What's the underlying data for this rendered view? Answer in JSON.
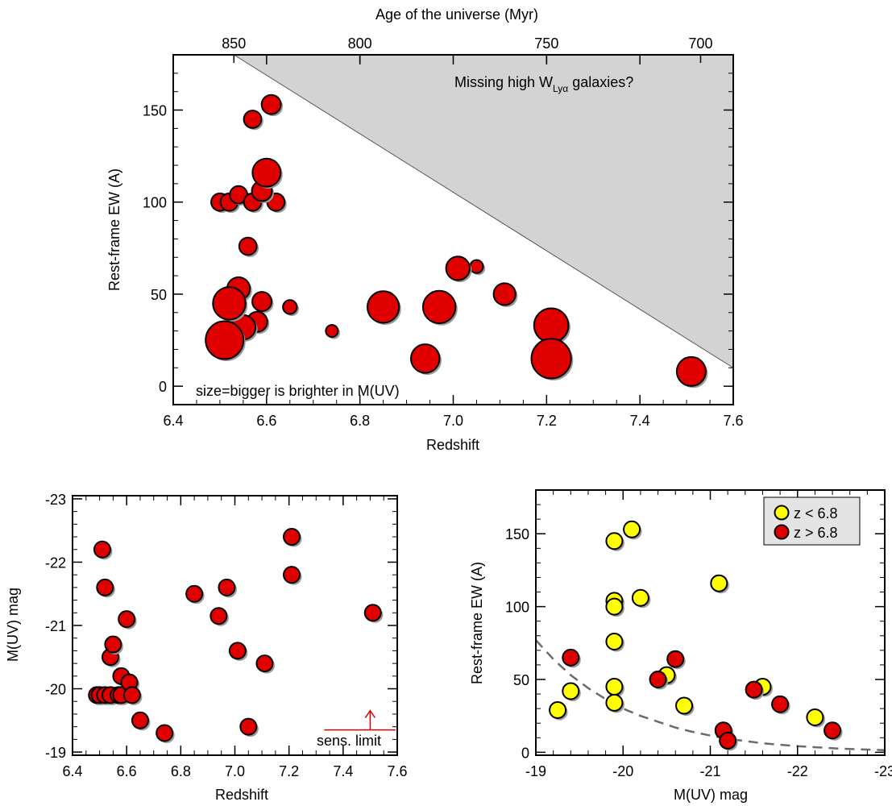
{
  "chart_data": [
    {
      "type": "scatter",
      "panel": "top",
      "xlabel": "Redshift",
      "ylabel": "Rest-frame EW (A)",
      "top_axis_label": "Age of the universe (Myr)",
      "xlim": [
        6.4,
        7.6
      ],
      "ylim": [
        -10,
        180
      ],
      "x_ticks": [
        "6.4",
        "6.6",
        "6.8",
        "7.0",
        "7.2",
        "7.4",
        "7.6"
      ],
      "y_ticks": [
        "0",
        "50",
        "100",
        "150"
      ],
      "top_ticks": [
        {
          "label": "850",
          "z": 6.53
        },
        {
          "label": "800",
          "z": 6.8
        },
        {
          "label": "750",
          "z": 7.2
        },
        {
          "label": "700",
          "z": 7.53
        }
      ],
      "annotations": {
        "missing_prefix": "Missing high W",
        "missing_sub": "Lyα",
        "missing_suffix": " galaxies?",
        "size_note": "size=bigger is brighter in M(UV)"
      },
      "shaded_region_line": [
        [
          6.53,
          180
        ],
        [
          7.6,
          10
        ]
      ],
      "colors": {
        "point": "#e00000",
        "shade": "#d3d3d3",
        "shadow": "#9a9a9a"
      },
      "points": [
        {
          "x": 6.5,
          "y": 100,
          "muv": -19.9
        },
        {
          "x": 6.51,
          "y": 25,
          "muv": -22.2
        },
        {
          "x": 6.52,
          "y": 45,
          "muv": -21.6
        },
        {
          "x": 6.52,
          "y": 100,
          "muv": -19.9
        },
        {
          "x": 6.54,
          "y": 104,
          "muv": -19.9
        },
        {
          "x": 6.54,
          "y": 53,
          "muv": -20.5
        },
        {
          "x": 6.55,
          "y": 32,
          "muv": -20.7
        },
        {
          "x": 6.56,
          "y": 76,
          "muv": -19.9
        },
        {
          "x": 6.57,
          "y": 145,
          "muv": -19.9
        },
        {
          "x": 6.57,
          "y": 100,
          "muv": -19.9
        },
        {
          "x": 6.58,
          "y": 35,
          "muv": -20.2
        },
        {
          "x": 6.59,
          "y": 106,
          "muv": -20.2
        },
        {
          "x": 6.59,
          "y": 46,
          "muv": -20.1
        },
        {
          "x": 6.6,
          "y": 116,
          "muv": -21.1
        },
        {
          "x": 6.61,
          "y": 153,
          "muv": -20.1
        },
        {
          "x": 6.62,
          "y": 100,
          "muv": -19.9
        },
        {
          "x": 6.65,
          "y": 43,
          "muv": -19.5
        },
        {
          "x": 6.74,
          "y": 30,
          "muv": -19.3
        },
        {
          "x": 6.85,
          "y": 43,
          "muv": -21.5
        },
        {
          "x": 6.94,
          "y": 15,
          "muv": -21.15
        },
        {
          "x": 6.97,
          "y": 43,
          "muv": -21.6
        },
        {
          "x": 7.01,
          "y": 64,
          "muv": -20.6
        },
        {
          "x": 7.05,
          "y": 65,
          "muv": -19.4
        },
        {
          "x": 7.11,
          "y": 50,
          "muv": -20.4
        },
        {
          "x": 7.21,
          "y": 33,
          "muv": -21.8
        },
        {
          "x": 7.21,
          "y": 15,
          "muv": -22.4
        },
        {
          "x": 7.51,
          "y": 8,
          "muv": -21.2
        }
      ]
    },
    {
      "type": "scatter",
      "panel": "bottom-left",
      "xlabel": "Redshift",
      "ylabel": "M(UV) mag",
      "xlim": [
        6.4,
        7.6
      ],
      "ylim": [
        -18.95,
        -23.05
      ],
      "x_ticks": [
        "6.4",
        "6.6",
        "6.8",
        "7.0",
        "7.2",
        "7.4",
        "7.6"
      ],
      "y_ticks": [
        "-19",
        "-20",
        "-21",
        "-22",
        "-23"
      ],
      "sens_limit": {
        "label": "sens. limit",
        "x_from": 7.33,
        "x_to": 7.6,
        "y": -19.35
      },
      "points": [
        {
          "x": 6.49,
          "y": -19.9
        },
        {
          "x": 6.5,
          "y": -19.9
        },
        {
          "x": 6.51,
          "y": -22.2
        },
        {
          "x": 6.52,
          "y": -21.6
        },
        {
          "x": 6.52,
          "y": -19.9
        },
        {
          "x": 6.54,
          "y": -19.9
        },
        {
          "x": 6.54,
          "y": -20.5
        },
        {
          "x": 6.55,
          "y": -20.7
        },
        {
          "x": 6.57,
          "y": -19.9
        },
        {
          "x": 6.58,
          "y": -19.9
        },
        {
          "x": 6.58,
          "y": -20.2
        },
        {
          "x": 6.6,
          "y": -21.1
        },
        {
          "x": 6.61,
          "y": -20.1
        },
        {
          "x": 6.62,
          "y": -19.9
        },
        {
          "x": 6.65,
          "y": -19.5
        },
        {
          "x": 6.74,
          "y": -19.3
        },
        {
          "x": 6.85,
          "y": -21.5
        },
        {
          "x": 6.94,
          "y": -21.15
        },
        {
          "x": 6.97,
          "y": -21.6
        },
        {
          "x": 7.01,
          "y": -20.6
        },
        {
          "x": 7.05,
          "y": -19.4
        },
        {
          "x": 7.11,
          "y": -20.4
        },
        {
          "x": 7.21,
          "y": -21.8
        },
        {
          "x": 7.21,
          "y": -22.4
        },
        {
          "x": 7.51,
          "y": -21.2
        }
      ]
    },
    {
      "type": "scatter",
      "panel": "bottom-right",
      "xlabel": "M(UV) mag",
      "ylabel": "Rest-frame EW (A)",
      "xlim": [
        -19,
        -23
      ],
      "ylim": [
        -2,
        180
      ],
      "x_ticks": [
        "-19",
        "-20",
        "-21",
        "-22",
        "-23"
      ],
      "y_ticks": [
        "0",
        "50",
        "100",
        "150"
      ],
      "legend": {
        "position": "top-right"
      },
      "series": [
        {
          "name": "z < 6.8",
          "color": "#ffff00",
          "points": [
            {
              "x": -19.25,
              "y": 29
            },
            {
              "x": -19.4,
              "y": 42
            },
            {
              "x": -19.9,
              "y": 145
            },
            {
              "x": -19.9,
              "y": 104
            },
            {
              "x": -19.9,
              "y": 100
            },
            {
              "x": -19.9,
              "y": 76
            },
            {
              "x": -19.9,
              "y": 45
            },
            {
              "x": -19.9,
              "y": 34
            },
            {
              "x": -20.1,
              "y": 153
            },
            {
              "x": -20.2,
              "y": 106
            },
            {
              "x": -20.5,
              "y": 53
            },
            {
              "x": -20.7,
              "y": 32
            },
            {
              "x": -21.1,
              "y": 116
            },
            {
              "x": -21.6,
              "y": 45
            },
            {
              "x": -22.2,
              "y": 24
            }
          ]
        },
        {
          "name": "z > 6.8",
          "color": "#e00000",
          "points": [
            {
              "x": -19.4,
              "y": 65
            },
            {
              "x": -20.4,
              "y": 50
            },
            {
              "x": -20.6,
              "y": 64
            },
            {
              "x": -21.15,
              "y": 15
            },
            {
              "x": -21.2,
              "y": 8
            },
            {
              "x": -21.5,
              "y": 43
            },
            {
              "x": -21.8,
              "y": 33
            },
            {
              "x": -22.4,
              "y": 15
            }
          ]
        }
      ],
      "dashed_curve": [
        [
          -19.0,
          77
        ],
        [
          -19.2,
          64
        ],
        [
          -19.4,
          53
        ],
        [
          -19.6,
          44
        ],
        [
          -19.8,
          36.5
        ],
        [
          -20.0,
          30
        ],
        [
          -20.2,
          25
        ],
        [
          -20.4,
          21
        ],
        [
          -20.6,
          17
        ],
        [
          -20.8,
          14
        ],
        [
          -21.0,
          11.5
        ],
        [
          -21.3,
          8.5
        ],
        [
          -21.6,
          6.2
        ],
        [
          -22.0,
          4.2
        ],
        [
          -22.5,
          2.5
        ],
        [
          -23.0,
          1.5
        ]
      ]
    }
  ]
}
